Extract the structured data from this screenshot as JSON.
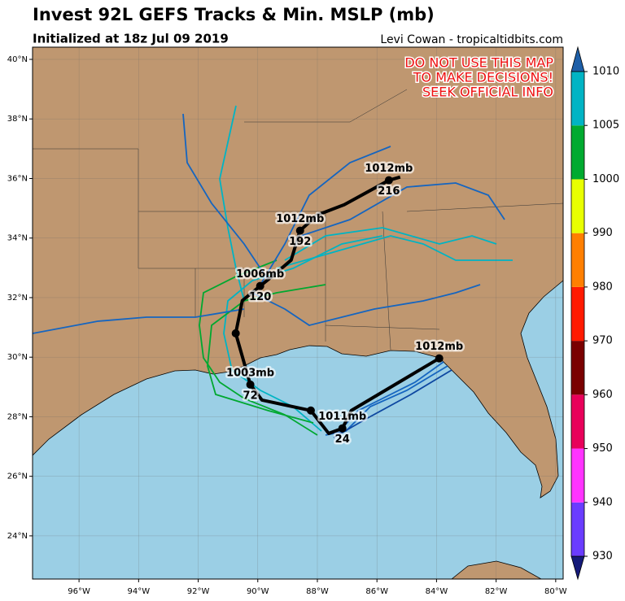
{
  "header": {
    "title": "Invest 92L GEFS Tracks & Min. MSLP (mb)",
    "subtitle": "Initialized at 18z Jul 09 2019",
    "credit": "Levi Cowan - tropicaltidbits.com"
  },
  "warning": [
    "DO NOT USE THIS MAP",
    "TO MAKE DECISIONS!",
    "SEEK OFFICIAL INFO"
  ],
  "map": {
    "lon_range": [
      -97.56,
      -79.75
    ],
    "lat_range": [
      22.55,
      40.41
    ],
    "lat_ticks": [
      {
        "value": 24,
        "label": "24°N"
      },
      {
        "value": 26,
        "label": "26°N"
      },
      {
        "value": 28,
        "label": "28°N"
      },
      {
        "value": 30,
        "label": "30°N"
      },
      {
        "value": 32,
        "label": "32°N"
      },
      {
        "value": 34,
        "label": "34°N"
      },
      {
        "value": 36,
        "label": "36°N"
      },
      {
        "value": 38,
        "label": "38°N"
      },
      {
        "value": 40,
        "label": "40°N"
      }
    ],
    "lon_ticks": [
      {
        "value": -96,
        "label": "96°W"
      },
      {
        "value": -94,
        "label": "94°W"
      },
      {
        "value": -92,
        "label": "92°W"
      },
      {
        "value": -90,
        "label": "90°W"
      },
      {
        "value": -88,
        "label": "88°W"
      },
      {
        "value": -86,
        "label": "86°W"
      },
      {
        "value": -84,
        "label": "84°W"
      },
      {
        "value": -82,
        "label": "82°W"
      },
      {
        "value": -80,
        "label": "80°W"
      }
    ],
    "mean_track": {
      "lon": [
        -83.91,
        -86.86,
        -87.16,
        -87.62,
        -88.22,
        -89.86,
        -90.25,
        -90.74,
        -90.52,
        -89.92,
        -89.51,
        -88.88,
        -88.58,
        -88.01,
        -87.1,
        -85.6,
        -85.22
      ],
      "lat": [
        29.96,
        28.21,
        27.61,
        27.44,
        28.21,
        28.56,
        29.08,
        30.8,
        31.9,
        32.39,
        32.72,
        33.26,
        34.25,
        34.77,
        35.12,
        35.94,
        36.05
      ]
    },
    "points": [
      {
        "lon": -83.91,
        "lat": 29.96,
        "pressure": "1012mb"
      },
      {
        "lon": -87.16,
        "lat": 27.61,
        "pressure": "1011mb",
        "hour": "24"
      },
      {
        "lon": -88.22,
        "lat": 28.21
      },
      {
        "lon": -90.25,
        "lat": 29.08,
        "pressure": "1003mb",
        "hour": "72"
      },
      {
        "lon": -90.74,
        "lat": 30.8
      },
      {
        "lon": -89.92,
        "lat": 32.39,
        "pressure": "1006mb",
        "hour": "120"
      },
      {
        "lon": -88.58,
        "lat": 34.25,
        "pressure": "1012mb",
        "hour": "192"
      },
      {
        "lon": -85.6,
        "lat": 35.94,
        "pressure": "1012mb",
        "hour": "216"
      }
    ]
  },
  "colorbar": {
    "ticks": [
      930,
      940,
      950,
      960,
      970,
      980,
      990,
      1000,
      1005,
      1010
    ],
    "colors": [
      "#6a3cff",
      "#ff33ff",
      "#e8005a",
      "#7a0000",
      "#ff1a00",
      "#ff7f00",
      "#e8ff00",
      "#00aa30",
      "#00b4c4"
    ],
    "under_color": "#151a7a",
    "over_color": "#1e5fa8"
  }
}
